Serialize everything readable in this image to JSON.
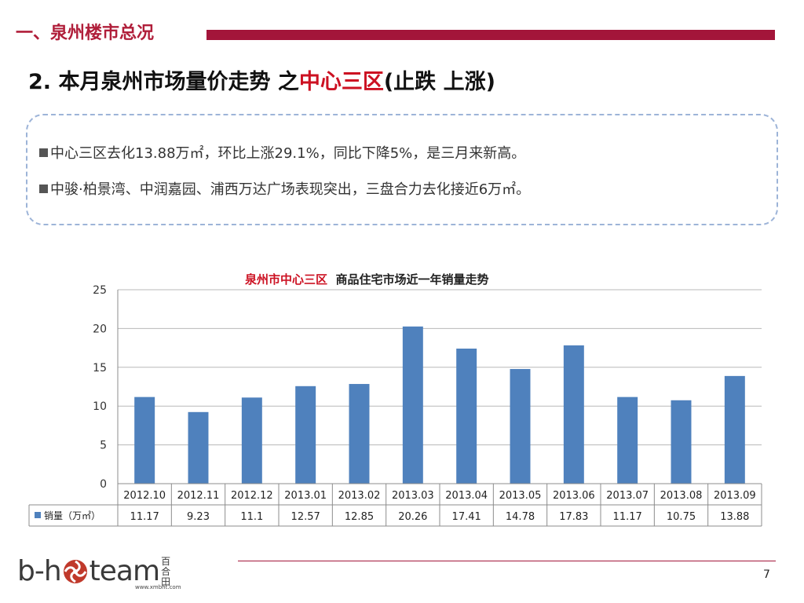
{
  "header": {
    "section_title": "一、泉州楼市总况",
    "slide_title_main": "2. 本月泉州市场量价走势 之",
    "slide_title_highlight": "中心三区",
    "slide_title_tail": "(止跌 上涨)"
  },
  "notes": [
    "中心三区去化13.88万㎡，环比上涨29.1%，同比下降5%，是三月来新高。",
    "中骏·柏景湾、中润嘉园、浦西万达广场表现突出，三盘合力去化接近6万㎡。"
  ],
  "chart_data": {
    "type": "bar",
    "title_highlight": "泉州市中心三区",
    "title_rest": "商品住宅市场近一年销量走势",
    "categories": [
      "2012.10",
      "2012.11",
      "2012.12",
      "2013.01",
      "2013.02",
      "2013.03",
      "2013.04",
      "2013.05",
      "2013.06",
      "2013.07",
      "2013.08",
      "2013.09"
    ],
    "series": [
      {
        "name": "销量（万㎡）",
        "values": [
          11.17,
          9.23,
          11.1,
          12.57,
          12.85,
          20.26,
          17.41,
          14.78,
          17.83,
          11.17,
          10.75,
          13.88
        ]
      }
    ],
    "value_labels": [
      "11.17",
      "9.23",
      "11.1",
      "12.57",
      "12.85",
      "20.26",
      "17.41",
      "14.78",
      "17.83",
      "11.17",
      "10.75",
      "13.88"
    ],
    "ylim": [
      0,
      25
    ],
    "yticks": [
      "0",
      "5",
      "10",
      "15",
      "20",
      "25"
    ],
    "grid": true,
    "data_table": true,
    "bar_color": "#4f81bd"
  },
  "footer": {
    "page_number": "7",
    "logo_left": "b-h",
    "logo_right": "team",
    "logo_cn": "百合田",
    "logo_url": "www.xmbht.com"
  },
  "colors": {
    "accent": "#a3153a",
    "highlight": "#cc1122",
    "bar": "#4f81bd",
    "note_border": "#9db4d8"
  }
}
